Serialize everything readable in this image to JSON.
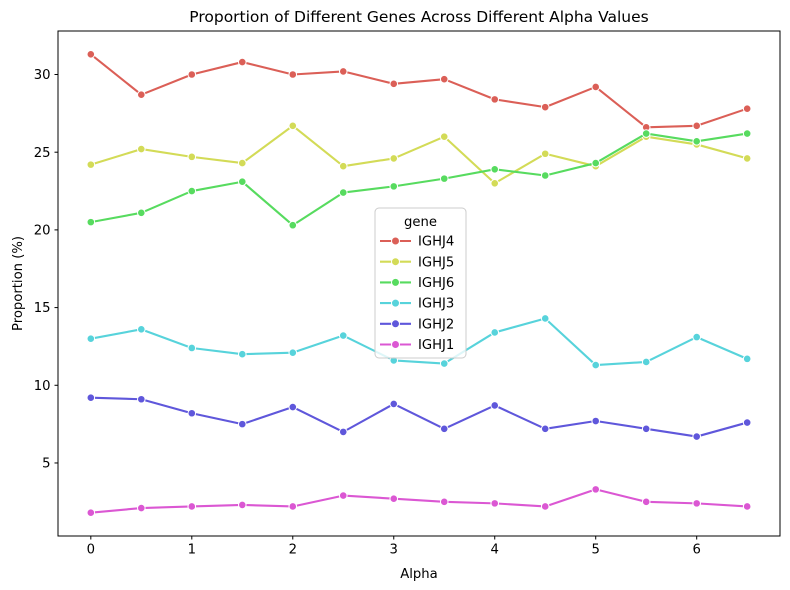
{
  "chart_data": {
    "type": "line",
    "title": "Proportion of Different Genes Across Different Alpha Values",
    "xlabel": "Alpha",
    "ylabel": "Proportion (%)",
    "x": [
      0,
      0.5,
      1,
      1.5,
      2,
      2.5,
      3,
      3.5,
      4,
      4.5,
      5,
      5.5,
      6,
      6.5
    ],
    "xticks": [
      0,
      1,
      2,
      3,
      4,
      5,
      6
    ],
    "yticks": [
      5,
      10,
      15,
      20,
      25,
      30
    ],
    "xlim": [
      -0.325,
      6.825
    ],
    "ylim": [
      0.3,
      32.8
    ],
    "grid": false,
    "legend": {
      "title": "gene",
      "position": "center"
    },
    "series": [
      {
        "name": "IGHJ4",
        "color": "#db5f57",
        "values": [
          31.3,
          28.7,
          30.0,
          30.8,
          30.0,
          30.2,
          29.4,
          29.7,
          28.4,
          27.9,
          29.2,
          26.6,
          26.7,
          27.8
        ]
      },
      {
        "name": "IGHJ5",
        "color": "#d3db57",
        "values": [
          24.2,
          25.2,
          24.7,
          24.3,
          26.7,
          24.1,
          24.6,
          26.0,
          23.0,
          24.9,
          24.1,
          26.0,
          25.5,
          24.6
        ]
      },
      {
        "name": "IGHJ6",
        "color": "#57db5f",
        "values": [
          20.5,
          21.1,
          22.5,
          23.1,
          20.3,
          22.4,
          22.8,
          23.3,
          23.9,
          23.5,
          24.3,
          26.2,
          25.7,
          26.2
        ]
      },
      {
        "name": "IGHJ3",
        "color": "#57d3db",
        "values": [
          13.0,
          13.6,
          12.4,
          12.0,
          12.1,
          13.2,
          11.6,
          11.4,
          13.4,
          14.3,
          11.3,
          11.5,
          13.1,
          11.7
        ]
      },
      {
        "name": "IGHJ2",
        "color": "#5f57db",
        "values": [
          9.2,
          9.1,
          8.2,
          7.5,
          8.6,
          7.0,
          8.8,
          7.2,
          8.7,
          7.2,
          7.7,
          7.2,
          6.7,
          7.6
        ]
      },
      {
        "name": "IGHJ1",
        "color": "#db57d3",
        "values": [
          1.8,
          2.1,
          2.2,
          2.3,
          2.2,
          2.9,
          2.7,
          2.5,
          2.4,
          2.2,
          3.3,
          2.5,
          2.4,
          2.2
        ]
      }
    ]
  }
}
